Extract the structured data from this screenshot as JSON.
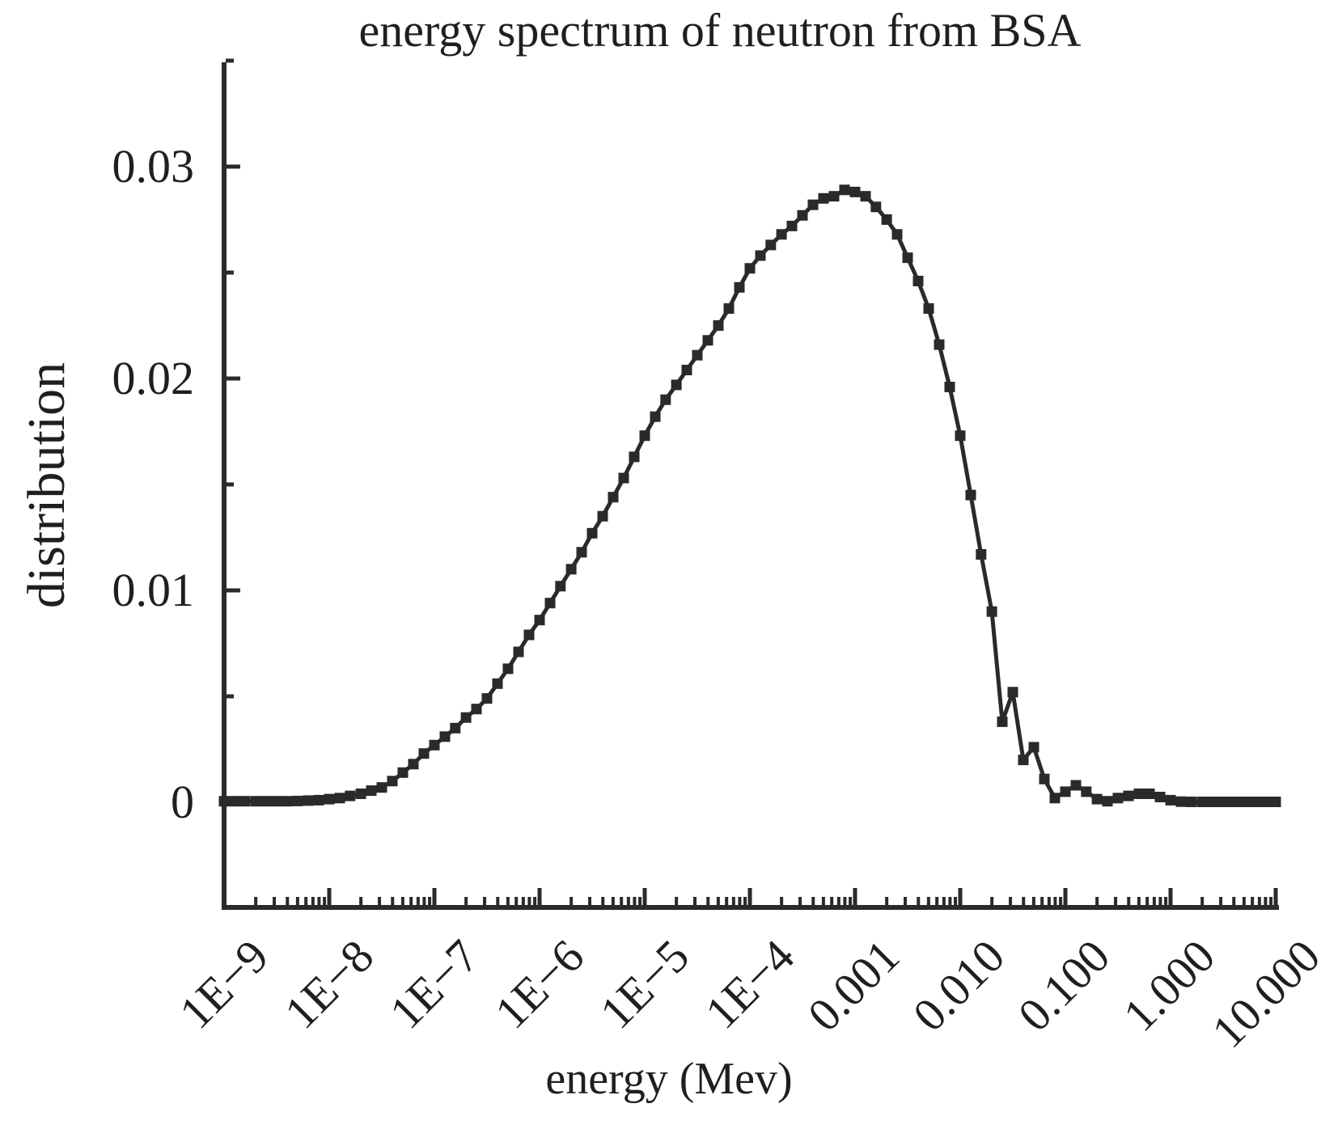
{
  "chart_data": {
    "type": "line",
    "title": "energy spectrum of neutron from BSA",
    "xlabel": "energy (Mev)",
    "ylabel": "distribution",
    "x_scale": "log",
    "x_range": [
      1e-09,
      10
    ],
    "y_range": [
      -0.005,
      0.035
    ],
    "grid": false,
    "legend": false,
    "line_color": "#2a2a2a",
    "marker": "square",
    "x_ticks": [
      {
        "value": 1e-09,
        "label": "1E−9"
      },
      {
        "value": 1e-08,
        "label": "1E−8"
      },
      {
        "value": 1e-07,
        "label": "1E−7"
      },
      {
        "value": 1e-06,
        "label": "1E−6"
      },
      {
        "value": 1e-05,
        "label": "1E−5"
      },
      {
        "value": 0.0001,
        "label": "1E−4"
      },
      {
        "value": 0.001,
        "label": "0.001"
      },
      {
        "value": 0.01,
        "label": "0.010"
      },
      {
        "value": 0.1,
        "label": "0.100"
      },
      {
        "value": 1,
        "label": "1.000"
      },
      {
        "value": 10,
        "label": "10.000"
      }
    ],
    "y_ticks": [
      {
        "value": 0,
        "label": "0"
      },
      {
        "value": 0.005,
        "label": ""
      },
      {
        "value": 0.01,
        "label": "0.01"
      },
      {
        "value": 0.015,
        "label": ""
      },
      {
        "value": 0.02,
        "label": "0.02"
      },
      {
        "value": 0.025,
        "label": ""
      },
      {
        "value": 0.03,
        "label": "0.03"
      },
      {
        "value": 0.035,
        "label": ""
      }
    ],
    "series": [
      {
        "points": [
          [
            1e-09,
            5e-05
          ],
          [
            1.26e-09,
            5e-05
          ],
          [
            1.58e-09,
            5e-05
          ],
          [
            2e-09,
            5e-05
          ],
          [
            2.51e-09,
            5e-05
          ],
          [
            3.16e-09,
            5e-05
          ],
          [
            3.98e-09,
            5e-05
          ],
          [
            5.01e-09,
            6e-05
          ],
          [
            6.31e-09,
            8e-05
          ],
          [
            7.94e-09,
            0.0001
          ],
          [
            1e-08,
            0.00015
          ],
          [
            1.26e-08,
            0.0002
          ],
          [
            1.58e-08,
            0.0003
          ],
          [
            2e-08,
            0.0004
          ],
          [
            2.51e-08,
            0.00055
          ],
          [
            3.16e-08,
            0.0007
          ],
          [
            3.98e-08,
            0.001
          ],
          [
            5.01e-08,
            0.0014
          ],
          [
            6.31e-08,
            0.0018
          ],
          [
            7.94e-08,
            0.0023
          ],
          [
            1e-07,
            0.0027
          ],
          [
            1.26e-07,
            0.0031
          ],
          [
            1.58e-07,
            0.0035
          ],
          [
            2e-07,
            0.004
          ],
          [
            2.51e-07,
            0.0044
          ],
          [
            3.16e-07,
            0.0049
          ],
          [
            3.98e-07,
            0.0056
          ],
          [
            5.01e-07,
            0.0063
          ],
          [
            6.31e-07,
            0.0071
          ],
          [
            7.94e-07,
            0.0079
          ],
          [
            1e-06,
            0.0086
          ],
          [
            1.26e-06,
            0.0094
          ],
          [
            1.58e-06,
            0.0102
          ],
          [
            2e-06,
            0.011
          ],
          [
            2.51e-06,
            0.0118
          ],
          [
            3.16e-06,
            0.0127
          ],
          [
            3.98e-06,
            0.0135
          ],
          [
            5.01e-06,
            0.0144
          ],
          [
            6.31e-06,
            0.0153
          ],
          [
            7.94e-06,
            0.0163
          ],
          [
            1e-05,
            0.0173
          ],
          [
            1.26e-05,
            0.0182
          ],
          [
            1.58e-05,
            0.019
          ],
          [
            2e-05,
            0.0197
          ],
          [
            2.51e-05,
            0.0204
          ],
          [
            3.16e-05,
            0.0211
          ],
          [
            3.98e-05,
            0.0218
          ],
          [
            5.01e-05,
            0.0225
          ],
          [
            6.31e-05,
            0.0233
          ],
          [
            7.94e-05,
            0.0243
          ],
          [
            0.0001,
            0.0252
          ],
          [
            0.000126,
            0.0258
          ],
          [
            0.000158,
            0.0263
          ],
          [
            0.0002,
            0.0268
          ],
          [
            0.000251,
            0.0272
          ],
          [
            0.000316,
            0.0277
          ],
          [
            0.000398,
            0.0282
          ],
          [
            0.000501,
            0.0285
          ],
          [
            0.000631,
            0.0286
          ],
          [
            0.000794,
            0.0289
          ],
          [
            0.001,
            0.0288
          ],
          [
            0.00126,
            0.0286
          ],
          [
            0.00158,
            0.0281
          ],
          [
            0.002,
            0.0275
          ],
          [
            0.00251,
            0.0268
          ],
          [
            0.00316,
            0.0257
          ],
          [
            0.00398,
            0.0246
          ],
          [
            0.00501,
            0.0233
          ],
          [
            0.00631,
            0.0216
          ],
          [
            0.00794,
            0.0196
          ],
          [
            0.01,
            0.0173
          ],
          [
            0.0126,
            0.0145
          ],
          [
            0.0158,
            0.0117
          ],
          [
            0.02,
            0.009
          ],
          [
            0.0251,
            0.0038
          ],
          [
            0.0316,
            0.0052
          ],
          [
            0.0398,
            0.002
          ],
          [
            0.0501,
            0.0026
          ],
          [
            0.0631,
            0.0011
          ],
          [
            0.0794,
            0.0002
          ],
          [
            0.1,
            0.0005
          ],
          [
            0.126,
            0.0008
          ],
          [
            0.158,
            0.0005
          ],
          [
            0.2,
            0.00015
          ],
          [
            0.251,
            5e-05
          ],
          [
            0.316,
            0.0002
          ],
          [
            0.398,
            0.0003
          ],
          [
            0.501,
            0.0004
          ],
          [
            0.631,
            0.0004
          ],
          [
            0.794,
            0.00025
          ],
          [
            1,
            0.0001
          ],
          [
            1.26,
            3e-05
          ],
          [
            1.58,
            2e-05
          ],
          [
            2,
            2e-05
          ],
          [
            2.51,
            2e-05
          ],
          [
            3.16,
            2e-05
          ],
          [
            3.98,
            2e-05
          ],
          [
            5.01,
            2e-05
          ],
          [
            6.31,
            2e-05
          ],
          [
            7.94,
            2e-05
          ],
          [
            10,
            2e-05
          ]
        ]
      }
    ]
  }
}
